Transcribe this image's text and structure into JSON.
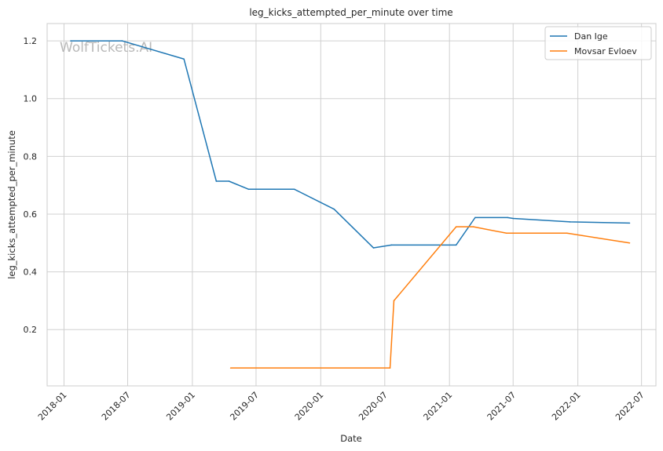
{
  "chart_data": {
    "type": "line",
    "title": "leg_kicks_attempted_per_minute over time",
    "xlabel": "Date",
    "ylabel": "leg_kicks_attempted_per_minute",
    "watermark": "WolfTickets.AI",
    "x_ticks": [
      "2018-01",
      "2018-07",
      "2019-01",
      "2019-07",
      "2020-01",
      "2020-07",
      "2021-01",
      "2021-07",
      "2022-01",
      "2022-07"
    ],
    "y_ticks": [
      "0.2",
      "0.4",
      "0.6",
      "0.8",
      "1.0",
      "1.2"
    ],
    "xlim": [
      "2017-11-14",
      "2022-08-11"
    ],
    "ylim": [
      0.005,
      1.26
    ],
    "grid": true,
    "legend_position": "top-right",
    "series": [
      {
        "name": "Dan Ige",
        "color": "#1f77b4",
        "points": [
          [
            "2018-01-20",
            1.2
          ],
          [
            "2018-06-15",
            1.2
          ],
          [
            "2018-12-08",
            1.137
          ],
          [
            "2019-03-10",
            0.714
          ],
          [
            "2019-04-15",
            0.714
          ],
          [
            "2019-06-10",
            0.686
          ],
          [
            "2019-10-18",
            0.686
          ],
          [
            "2020-02-08",
            0.617
          ],
          [
            "2020-05-30",
            0.483
          ],
          [
            "2020-07-20",
            0.493
          ],
          [
            "2021-01-20",
            0.493
          ],
          [
            "2021-03-15",
            0.588
          ],
          [
            "2021-06-15",
            0.588
          ],
          [
            "2021-07-01",
            0.585
          ],
          [
            "2021-12-10",
            0.573
          ],
          [
            "2022-05-28",
            0.569
          ]
        ]
      },
      {
        "name": "Movsar Evloev",
        "color": "#ff7f0e",
        "points": [
          [
            "2019-04-20",
            0.067
          ],
          [
            "2020-07-16",
            0.067
          ],
          [
            "2020-07-27",
            0.3
          ],
          [
            "2021-01-20",
            0.556
          ],
          [
            "2021-03-10",
            0.556
          ],
          [
            "2021-06-12",
            0.534
          ],
          [
            "2021-12-01",
            0.534
          ],
          [
            "2022-05-28",
            0.5
          ]
        ]
      }
    ]
  }
}
